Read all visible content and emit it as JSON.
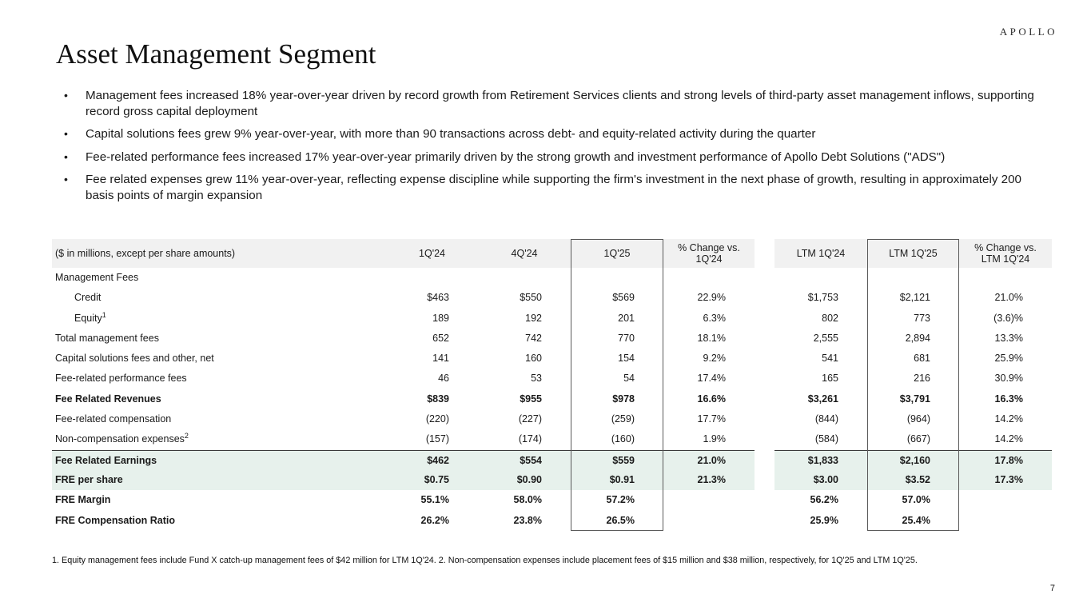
{
  "brand": "APOLLO",
  "title": "Asset Management Segment",
  "bullets": [
    "Management fees increased 18% year-over-year driven by record growth from Retirement Services clients and strong levels of third-party asset management inflows, supporting record gross capital deployment",
    "Capital solutions fees grew 9% year-over-year, with more than 90 transactions across debt- and equity-related activity during the quarter",
    "Fee-related performance fees increased 17% year-over-year primarily driven by the strong growth and investment performance of Apollo Debt Solutions (\"ADS\")",
    "Fee related expenses grew 11% year-over-year, reflecting expense discipline while supporting the firm's investment in the next phase of growth, resulting in approximately 200 basis points of margin expansion"
  ],
  "table": {
    "header": {
      "label": "($ in millions, except per share amounts)",
      "columns": [
        "1Q'24",
        "4Q'24",
        "1Q'25",
        "% Change vs. 1Q'24",
        "LTM 1Q'24",
        "LTM 1Q'25",
        "% Change vs. LTM 1Q'24"
      ]
    },
    "rows": [
      {
        "label": "Management Fees",
        "values": [
          "",
          "",
          "",
          "",
          "",
          "",
          ""
        ]
      },
      {
        "label": "Credit",
        "indent": true,
        "values": [
          "$463",
          "$550",
          "$569",
          "22.9%",
          "$1,753",
          "$2,121",
          "21.0%"
        ]
      },
      {
        "label": "Equity",
        "sup": "1",
        "indent": true,
        "values": [
          "189",
          "192",
          "201",
          "6.3%",
          "802",
          "773",
          "(3.6)%"
        ]
      },
      {
        "label": "Total management fees",
        "values": [
          "652",
          "742",
          "770",
          "18.1%",
          "2,555",
          "2,894",
          "13.3%"
        ]
      },
      {
        "label": "Capital solutions fees and other, net",
        "values": [
          "141",
          "160",
          "154",
          "9.2%",
          "541",
          "681",
          "25.9%"
        ]
      },
      {
        "label": "Fee-related performance fees",
        "values": [
          "46",
          "53",
          "54",
          "17.4%",
          "165",
          "216",
          "30.9%"
        ]
      },
      {
        "label": "Fee Related Revenues",
        "bold": true,
        "values": [
          "$839",
          "$955",
          "$978",
          "16.6%",
          "$3,261",
          "$3,791",
          "16.3%"
        ]
      },
      {
        "label": "Fee-related compensation",
        "values": [
          "(220)",
          "(227)",
          "(259)",
          "17.7%",
          "(844)",
          "(964)",
          "14.2%"
        ]
      },
      {
        "label": "Non-compensation expenses",
        "sup": "2",
        "values": [
          "(157)",
          "(174)",
          "(160)",
          "1.9%",
          "(584)",
          "(667)",
          "14.2%"
        ]
      },
      {
        "label": "Fee Related Earnings",
        "bold": true,
        "highlight": true,
        "topline": true,
        "values": [
          "$462",
          "$554",
          "$559",
          "21.0%",
          "$1,833",
          "$2,160",
          "17.8%"
        ]
      },
      {
        "label": "FRE per share",
        "bold": true,
        "highlight": true,
        "values": [
          "$0.75",
          "$0.90",
          "$0.91",
          "21.3%",
          "$3.00",
          "$3.52",
          "17.3%"
        ]
      },
      {
        "label": "FRE Margin",
        "bold": true,
        "values": [
          "55.1%",
          "58.0%",
          "57.2%",
          "",
          "56.2%",
          "57.0%",
          ""
        ]
      },
      {
        "label": "FRE Compensation Ratio",
        "bold": true,
        "values": [
          "26.2%",
          "23.8%",
          "26.5%",
          "",
          "25.9%",
          "25.4%",
          ""
        ]
      }
    ]
  },
  "footnote": "1. Equity management fees include Fund X catch-up management fees of $42 million for LTM 1Q'24. 2. Non-compensation expenses include placement fees of $15 million and $38 million, respectively, for 1Q'25 and LTM 1Q'25.",
  "page_number": "7",
  "colors": {
    "highlight_green": "#e7f1ec",
    "header_gray": "#f1f1f1"
  }
}
